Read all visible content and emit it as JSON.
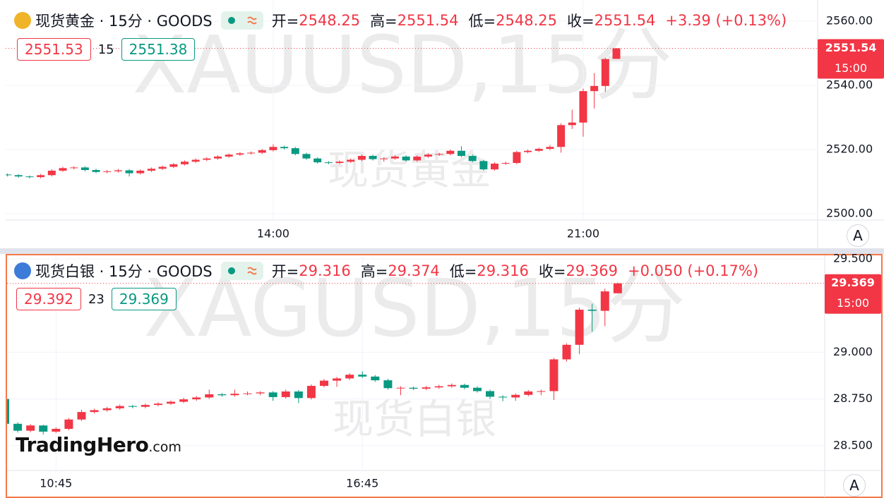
{
  "chart_data": [
    {
      "type": "candlestick",
      "title": "现货黄金 · 15分 · GOODS",
      "watermark": "XAUUSD,15分",
      "watermark_sub": "现货黄金",
      "ohlc_labels": [
        "开=",
        "高=",
        "低=",
        "收="
      ],
      "change": "+3.39 (+0.13%)",
      "bid": "2551.53",
      "spread": "15",
      "ask": "2551.38",
      "countdown": "15:00",
      "scale_button": "A",
      "up_color": "#f23645",
      "down_color": "#089981",
      "icon_color": "#f0b429",
      "categories": [
        null,
        null,
        null,
        null,
        null,
        null,
        null,
        null,
        null,
        null,
        null,
        null,
        null,
        null,
        null,
        null,
        null,
        null,
        null,
        null,
        null,
        null,
        null,
        null,
        "14:00",
        null,
        null,
        null,
        null,
        null,
        null,
        null,
        null,
        null,
        null,
        null,
        null,
        null,
        null,
        null,
        null,
        null,
        null,
        null,
        null,
        null,
        null,
        null,
        null,
        null,
        null,
        null,
        "21:00",
        null,
        null,
        null
      ],
      "ohlc": [
        [
          2512.2,
          2512.5,
          2511.6,
          2512.0
        ],
        [
          2512.0,
          2512.3,
          2511.2,
          2511.6
        ],
        [
          2511.6,
          2511.9,
          2511.0,
          2511.4
        ],
        [
          2511.4,
          2512.4,
          2511.0,
          2512.0
        ],
        [
          2512.0,
          2513.8,
          2511.6,
          2513.4
        ],
        [
          2513.4,
          2514.6,
          2513.0,
          2514.2
        ],
        [
          2514.2,
          2514.8,
          2513.8,
          2514.4
        ],
        [
          2514.4,
          2514.8,
          2513.2,
          2513.6
        ],
        [
          2513.6,
          2514.0,
          2512.6,
          2513.0
        ],
        [
          2513.0,
          2513.6,
          2512.6,
          2513.2
        ],
        [
          2513.2,
          2514.0,
          2512.8,
          2513.5
        ],
        [
          2513.5,
          2513.9,
          2511.6,
          2512.6
        ],
        [
          2512.6,
          2513.8,
          2512.2,
          2513.4
        ],
        [
          2513.4,
          2514.4,
          2513.0,
          2514.0
        ],
        [
          2514.0,
          2515.0,
          2513.6,
          2514.6
        ],
        [
          2514.6,
          2515.8,
          2514.2,
          2515.4
        ],
        [
          2515.4,
          2516.6,
          2515.0,
          2516.2
        ],
        [
          2516.2,
          2517.2,
          2515.8,
          2516.8
        ],
        [
          2516.8,
          2517.6,
          2516.4,
          2517.2
        ],
        [
          2517.2,
          2518.2,
          2516.8,
          2517.8
        ],
        [
          2517.8,
          2518.8,
          2517.4,
          2518.4
        ],
        [
          2518.4,
          2519.2,
          2518.0,
          2518.8
        ],
        [
          2518.8,
          2519.4,
          2518.4,
          2519.0
        ],
        [
          2519.0,
          2520.2,
          2518.6,
          2519.8
        ],
        [
          2519.8,
          2521.6,
          2519.4,
          2520.8
        ],
        [
          2520.8,
          2521.2,
          2520.0,
          2520.4
        ],
        [
          2520.4,
          2520.8,
          2518.2,
          2518.6
        ],
        [
          2518.6,
          2519.0,
          2516.8,
          2517.2
        ],
        [
          2517.2,
          2517.6,
          2515.6,
          2516.0
        ],
        [
          2516.0,
          2516.4,
          2515.4,
          2515.8
        ],
        [
          2515.8,
          2516.6,
          2515.4,
          2516.2
        ],
        [
          2516.2,
          2517.2,
          2515.8,
          2516.8
        ],
        [
          2516.8,
          2518.4,
          2516.4,
          2518.0
        ],
        [
          2518.0,
          2518.4,
          2516.6,
          2517.0
        ],
        [
          2517.0,
          2517.6,
          2516.2,
          2517.2
        ],
        [
          2517.2,
          2518.2,
          2516.8,
          2517.8
        ],
        [
          2517.8,
          2518.2,
          2516.2,
          2516.6
        ],
        [
          2516.6,
          2518.2,
          2516.2,
          2517.8
        ],
        [
          2517.8,
          2518.8,
          2517.4,
          2518.4
        ],
        [
          2518.4,
          2519.0,
          2518.0,
          2518.6
        ],
        [
          2518.6,
          2520.0,
          2518.2,
          2519.6
        ],
        [
          2519.6,
          2521.0,
          2517.6,
          2518.0
        ],
        [
          2518.0,
          2518.4,
          2516.0,
          2516.4
        ],
        [
          2516.4,
          2516.8,
          2513.4,
          2513.8
        ],
        [
          2513.8,
          2516.0,
          2513.4,
          2515.6
        ],
        [
          2515.6,
          2516.2,
          2515.2,
          2515.8
        ],
        [
          2515.8,
          2519.6,
          2515.4,
          2519.2
        ],
        [
          2519.2,
          2520.0,
          2518.8,
          2519.6
        ],
        [
          2519.6,
          2520.6,
          2519.2,
          2520.2
        ],
        [
          2520.2,
          2521.4,
          2519.8,
          2520.8
        ],
        [
          2520.8,
          2528.2,
          2519.0,
          2527.6
        ],
        [
          2527.6,
          2532.4,
          2526.4,
          2528.4
        ],
        [
          2528.4,
          2539.0,
          2524.0,
          2538.2
        ],
        [
          2538.2,
          2543.8,
          2532.8,
          2539.8
        ],
        [
          2539.8,
          2548.6,
          2538.0,
          2548.2
        ],
        [
          2548.25,
          2551.54,
          2548.25,
          2551.54
        ]
      ],
      "ylim": [
        2498.0,
        2566.6
      ],
      "yticks": [
        {
          "value": 2500,
          "label": "2500.00"
        },
        {
          "value": 2520,
          "label": "2520.00"
        },
        {
          "value": 2540,
          "label": "2540.00"
        },
        {
          "value": 2560,
          "label": "2560.00"
        }
      ],
      "grid": true
    },
    {
      "type": "candlestick",
      "title": "现货白银 · 15分 · GOODS",
      "watermark": "XAGUSD,15分",
      "watermark_sub": "现货白银",
      "ohlc_labels": [
        "开=",
        "高=",
        "低=",
        "收="
      ],
      "change": "+0.050 (+0.17%)",
      "bid": "29.392",
      "spread": "23",
      "ask": "29.369",
      "countdown": "15:00",
      "scale_button": "A",
      "logo": "TradingHero",
      "logo_suffix": ".com",
      "up_color": "#f23645",
      "down_color": "#089981",
      "icon_color": "#3d7bd8",
      "categories": [
        null,
        null,
        null,
        null,
        "10:45",
        null,
        null,
        null,
        null,
        null,
        null,
        null,
        null,
        null,
        null,
        null,
        null,
        null,
        null,
        null,
        null,
        null,
        null,
        null,
        null,
        null,
        null,
        null,
        "16:45",
        null,
        null,
        null,
        null,
        null,
        null,
        null,
        null,
        null,
        null,
        null,
        null,
        null,
        null,
        null,
        null,
        null,
        null,
        null,
        null
      ],
      "ohlc": [
        [
          28.75,
          28.76,
          28.605,
          28.617
        ],
        [
          28.617,
          28.625,
          28.57,
          28.58
        ],
        [
          28.58,
          28.615,
          28.572,
          28.608
        ],
        [
          28.608,
          28.612,
          28.56,
          28.575
        ],
        [
          28.575,
          28.598,
          28.568,
          28.59
        ],
        [
          28.59,
          28.648,
          28.582,
          28.64
        ],
        [
          28.64,
          28.692,
          28.632,
          28.68
        ],
        [
          28.68,
          28.698,
          28.672,
          28.69
        ],
        [
          28.69,
          28.708,
          28.682,
          28.7
        ],
        [
          28.7,
          28.72,
          28.692,
          28.712
        ],
        [
          28.712,
          28.718,
          28.7,
          28.708
        ],
        [
          28.708,
          28.726,
          28.7,
          28.718
        ],
        [
          28.718,
          28.732,
          28.71,
          28.725
        ],
        [
          28.725,
          28.742,
          28.718,
          28.735
        ],
        [
          28.735,
          28.756,
          28.728,
          28.748
        ],
        [
          28.748,
          28.766,
          28.74,
          28.758
        ],
        [
          28.758,
          28.8,
          28.75,
          28.775
        ],
        [
          28.775,
          28.782,
          28.762,
          28.77
        ],
        [
          28.77,
          28.8,
          28.762,
          28.778
        ],
        [
          28.778,
          28.79,
          28.77,
          28.78
        ],
        [
          28.78,
          28.792,
          28.77,
          28.785
        ],
        [
          28.785,
          28.792,
          28.74,
          28.76
        ],
        [
          28.76,
          28.8,
          28.752,
          28.79
        ],
        [
          28.79,
          28.798,
          28.728,
          28.755
        ],
        [
          28.755,
          28.828,
          28.747,
          28.82
        ],
        [
          28.82,
          28.856,
          28.812,
          28.848
        ],
        [
          28.848,
          28.868,
          28.815,
          28.86
        ],
        [
          28.86,
          28.888,
          28.852,
          28.88
        ],
        [
          28.88,
          28.898,
          28.862,
          28.87
        ],
        [
          28.87,
          28.878,
          28.842,
          28.85
        ],
        [
          28.85,
          28.858,
          28.8,
          28.808
        ],
        [
          28.808,
          28.818,
          28.77,
          28.81
        ],
        [
          28.81,
          28.816,
          28.797,
          28.805
        ],
        [
          28.805,
          28.82,
          28.797,
          28.812
        ],
        [
          28.812,
          28.826,
          28.804,
          28.818
        ],
        [
          28.818,
          28.833,
          28.81,
          28.825
        ],
        [
          28.825,
          28.832,
          28.802,
          28.81
        ],
        [
          28.81,
          28.818,
          28.784,
          28.792
        ],
        [
          28.792,
          28.8,
          28.75,
          28.762
        ],
        [
          28.762,
          28.77,
          28.738,
          28.758
        ],
        [
          28.758,
          28.78,
          28.74,
          28.772
        ],
        [
          28.772,
          28.798,
          28.764,
          28.79
        ],
        [
          28.79,
          28.8,
          28.77,
          28.792
        ],
        [
          28.792,
          28.97,
          28.745,
          28.962
        ],
        [
          28.962,
          29.048,
          28.95,
          29.04
        ],
        [
          29.04,
          29.24,
          28.99,
          29.228
        ],
        [
          29.228,
          29.26,
          29.11,
          29.222
        ],
        [
          29.222,
          29.34,
          29.14,
          29.326
        ],
        [
          29.316,
          29.374,
          29.316,
          29.369
        ]
      ],
      "ylim": [
        28.367,
        29.519
      ],
      "yticks": [
        {
          "value": 28.5,
          "label": "28.500"
        },
        {
          "value": 28.75,
          "label": "28.750"
        },
        {
          "value": 29,
          "label": "29.000"
        },
        {
          "value": 29.5,
          "label": "29.500"
        }
      ],
      "grid": true
    }
  ]
}
